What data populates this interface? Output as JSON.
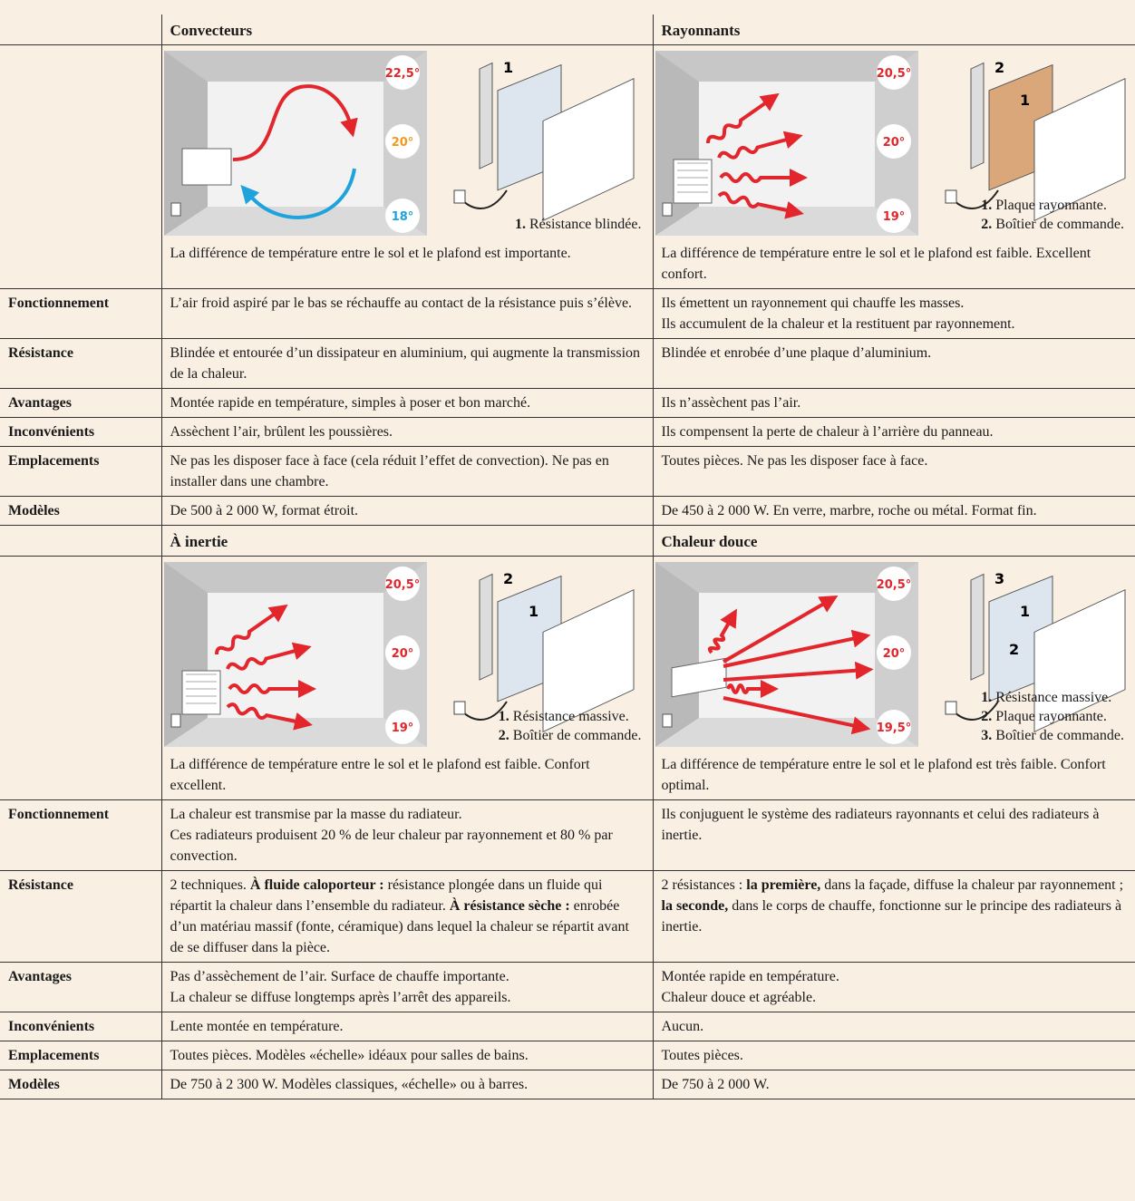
{
  "sections": [
    {
      "columns": [
        {
          "title": "Convecteurs",
          "temps": [
            {
              "label": "22,5°",
              "color": "#e2262c"
            },
            {
              "label": "20°",
              "color": "#f39a1e"
            },
            {
              "label": "18°",
              "color": "#1ea3dc"
            }
          ],
          "callouts": [
            "1"
          ],
          "legend": [
            {
              "num": "1.",
              "text": "Résistance blindée."
            }
          ],
          "summary": "La différence de température entre le sol et le plafond est importante."
        },
        {
          "title": "Rayonnants",
          "temps": [
            {
              "label": "20,5°",
              "color": "#e2262c"
            },
            {
              "label": "20°",
              "color": "#e2262c"
            },
            {
              "label": "19°",
              "color": "#e2262c"
            }
          ],
          "callouts": [
            "2",
            "1"
          ],
          "legend": [
            {
              "num": "1.",
              "text": "Plaque rayonnante."
            },
            {
              "num": "2.",
              "text": "Boîtier de commande."
            }
          ],
          "summary": "La différence de température entre le sol et le plafond est faible. Excellent confort."
        }
      ],
      "rows": [
        {
          "label": "Fonctionnement",
          "cells": [
            [
              "L’air froid aspiré par le bas se réchauffe au contact de la résistance puis s’élève."
            ],
            [
              "Ils émettent un rayonnement qui chauffe les masses.",
              "Ils accumulent de la chaleur et la restituent par rayonnement."
            ]
          ]
        },
        {
          "label": "Résistance",
          "cells": [
            [
              "Blindée et entourée d’un dissipateur en aluminium, qui augmente la transmission de la chaleur."
            ],
            [
              "Blindée et enrobée d’une plaque d’aluminium."
            ]
          ]
        },
        {
          "label": "Avantages",
          "cells": [
            [
              "Montée rapide en température, simples à poser et bon marché."
            ],
            [
              "Ils n’assèchent pas l’air."
            ]
          ]
        },
        {
          "label": "Inconvénients",
          "cells": [
            [
              "Assèchent l’air, brûlent les poussières."
            ],
            [
              "Ils compensent la perte de chaleur à l’arrière du panneau."
            ]
          ]
        },
        {
          "label": "Emplacements",
          "cells": [
            [
              "Ne pas les disposer face à face (cela réduit l’effet de convection). Ne pas en installer dans une chambre."
            ],
            [
              "Toutes pièces. Ne pas les disposer face à face."
            ]
          ]
        },
        {
          "label": "Modèles",
          "cells": [
            [
              "De 500 à 2 000 W, format étroit."
            ],
            [
              "De 450 à 2 000 W. En verre, marbre, roche ou métal. Format fin."
            ]
          ]
        }
      ]
    },
    {
      "columns": [
        {
          "title": "À inertie",
          "temps": [
            {
              "label": "20,5°",
              "color": "#e2262c"
            },
            {
              "label": "20°",
              "color": "#e2262c"
            },
            {
              "label": "19°",
              "color": "#e2262c"
            }
          ],
          "callouts": [
            "2",
            "1"
          ],
          "legend": [
            {
              "num": "1.",
              "text": "Résistance massive."
            },
            {
              "num": "2.",
              "text": "Boîtier de commande."
            }
          ],
          "summary": "La différence de température entre le sol et le plafond est faible. Confort excellent."
        },
        {
          "title": "Chaleur douce",
          "temps": [
            {
              "label": "20,5°",
              "color": "#e2262c"
            },
            {
              "label": "20°",
              "color": "#e2262c"
            },
            {
              "label": "19,5°",
              "color": "#e2262c"
            }
          ],
          "callouts": [
            "3",
            "1",
            "2"
          ],
          "legend": [
            {
              "num": "1.",
              "text": "Résistance massive."
            },
            {
              "num": "2.",
              "text": "Plaque rayonnante."
            },
            {
              "num": "3.",
              "text": "Boîtier de commande."
            }
          ],
          "summary": "La différence de température entre le sol et le plafond est très faible. Confort optimal."
        }
      ],
      "rows": [
        {
          "label": "Fonctionnement",
          "cells": [
            [
              "La chaleur est transmise par la masse du radiateur.",
              "Ces radiateurs produisent 20 % de leur chaleur par rayonnement et 80 % par convection."
            ],
            [
              "Ils conjuguent le système des radiateurs rayonnants et celui des radiateurs à inertie."
            ]
          ]
        },
        {
          "label": "Résistance",
          "cells": [
            [
              [
                {
                  "text": "2 techniques. "
                },
                {
                  "text": "À fluide caloporteur :",
                  "bold": true
                },
                {
                  "text": " résistance plongée dans un fluide qui répartit la chaleur dans l’ensemble du radiateur. "
                },
                {
                  "text": "À résistance sèche :",
                  "bold": true
                },
                {
                  "text": " enrobée d’un matériau massif (fonte, céramique) dans lequel la chaleur se répartit avant de se diffuser dans la pièce."
                }
              ]
            ],
            [
              [
                {
                  "text": "2 résistances : "
                },
                {
                  "text": "la première,",
                  "bold": true
                },
                {
                  "text": " dans la façade, diffuse la chaleur par rayonnement ; "
                },
                {
                  "text": "la seconde,",
                  "bold": true
                },
                {
                  "text": " dans le corps de chauffe, fonctionne sur le principe des radiateurs à inertie."
                }
              ]
            ]
          ]
        },
        {
          "label": "Avantages",
          "cells": [
            [
              "Pas d’assèchement de l’air. Surface de chauffe importante.",
              "La chaleur se diffuse longtemps après l’arrêt des appareils."
            ],
            [
              "Montée rapide en température.",
              "Chaleur douce et agréable."
            ]
          ]
        },
        {
          "label": "Inconvénients",
          "cells": [
            [
              "Lente montée en température."
            ],
            [
              "Aucun."
            ]
          ]
        },
        {
          "label": "Emplacements",
          "cells": [
            [
              "Toutes pièces. Modèles «échelle» idéaux pour salles de bains."
            ],
            [
              "Toutes pièces."
            ]
          ]
        },
        {
          "label": "Modèles",
          "cells": [
            [
              "De 750 à 2 300 W. Modèles classiques, «échelle» ou à barres."
            ],
            [
              "De 750 à 2 000 W."
            ]
          ]
        }
      ]
    }
  ]
}
